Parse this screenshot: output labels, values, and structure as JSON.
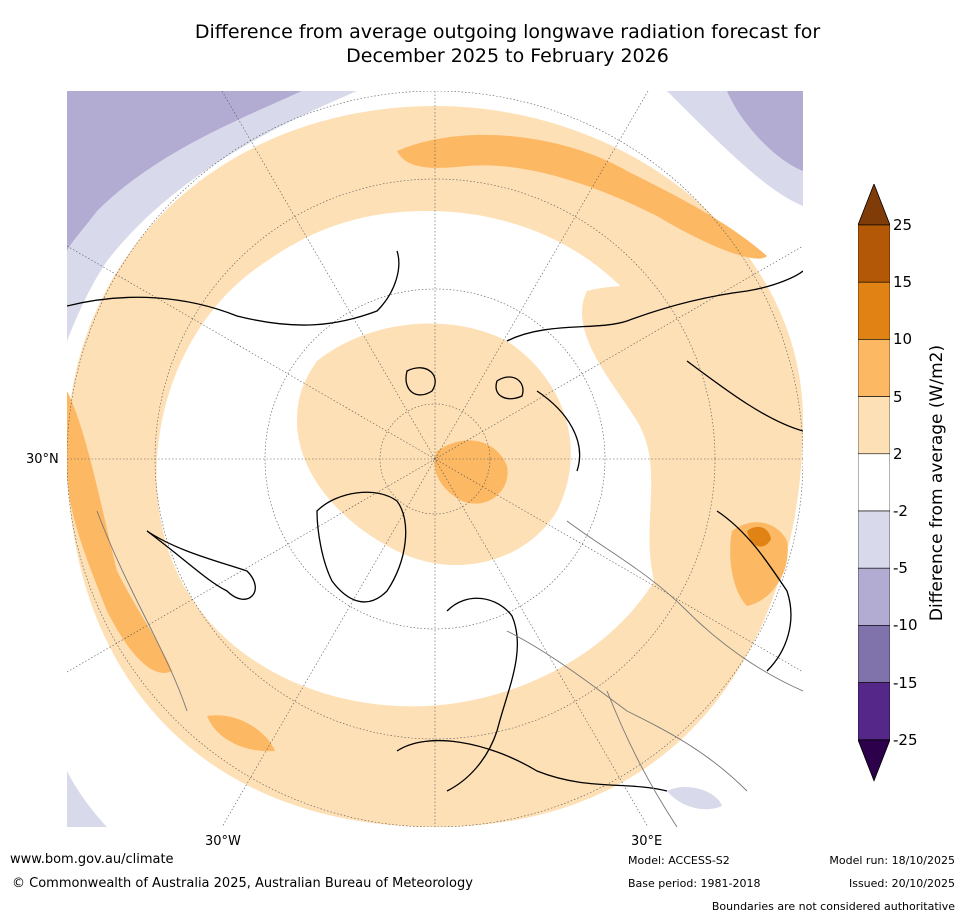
{
  "title_line1": "Difference from average outgoing longwave radiation forecast for",
  "title_line2": "December 2025 to February 2026",
  "map": {
    "projection": "north-polar-stereographic",
    "lat_label": "30°N",
    "lon_label_left": "30°W",
    "lon_label_right": "30°E"
  },
  "colorbar": {
    "label": "Difference from average (W/m2)",
    "ticks": [
      "25",
      "15",
      "10",
      "5",
      "2",
      "-2",
      "-5",
      "-10",
      "-15",
      "-25"
    ],
    "bins": [
      {
        "range": ">25",
        "color": "#7f3b08"
      },
      {
        "range": "15 to 25",
        "color": "#b35806"
      },
      {
        "range": "10 to 15",
        "color": "#e08214"
      },
      {
        "range": "5 to 10",
        "color": "#fdb863"
      },
      {
        "range": "2 to 5",
        "color": "#fee0b6"
      },
      {
        "range": "-2 to 2",
        "color": "#ffffff"
      },
      {
        "range": "-5 to -2",
        "color": "#d8daeb"
      },
      {
        "range": "-10 to -5",
        "color": "#b2abd2"
      },
      {
        "range": "-15 to -10",
        "color": "#8073ac"
      },
      {
        "range": "-25 to -15",
        "color": "#542788"
      },
      {
        "range": "<-25",
        "color": "#2d004b"
      }
    ]
  },
  "footer": {
    "website": "www.bom.gov.au/climate",
    "copyright": "© Commonwealth of Australia 2025, Australian Bureau of Meteorology",
    "model": "Model: ACCESS-S2",
    "base_period": "Base period: 1981-2018",
    "model_run": "Model run: 18/10/2025",
    "issued": "Issued: 20/10/2025",
    "disclaimer": "Boundaries are not considered authoritative"
  }
}
